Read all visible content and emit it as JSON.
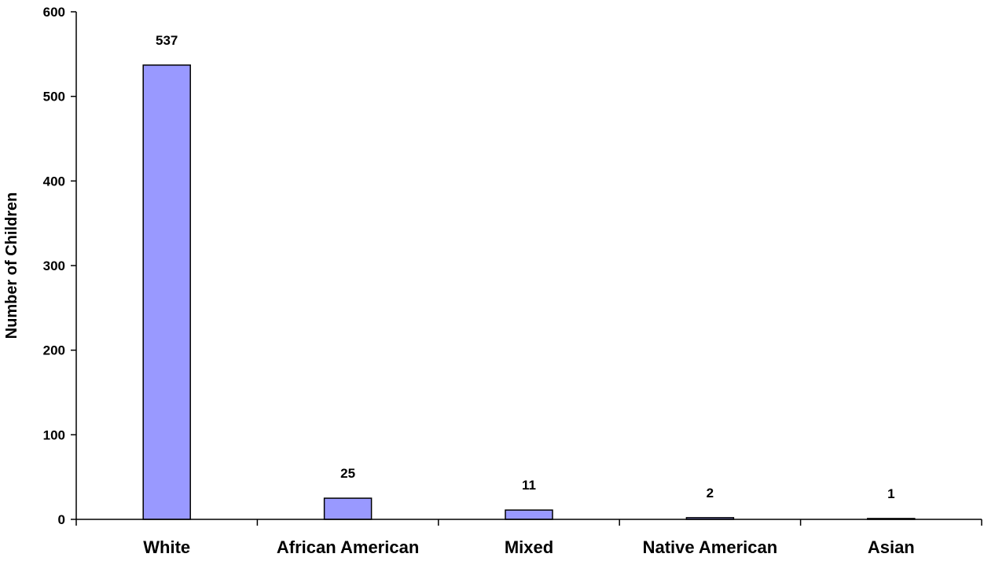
{
  "chart_data": {
    "type": "bar",
    "title": "",
    "xlabel": "",
    "ylabel": "Number of Children",
    "categories": [
      "White",
      "African American",
      "Mixed",
      "Native American",
      "Asian"
    ],
    "values": [
      537,
      25,
      11,
      2,
      1
    ],
    "data_labels": [
      "537",
      "25",
      "11",
      "2",
      "1"
    ],
    "ylim": [
      0,
      600
    ],
    "yticks": [
      0,
      100,
      200,
      300,
      400,
      500,
      600
    ],
    "ytick_labels": [
      "0",
      "100",
      "200",
      "300",
      "400",
      "500",
      "600"
    ],
    "grid": false,
    "legend": "none",
    "bar_color": "#9999FF",
    "bar_edge_color": "#000000"
  }
}
